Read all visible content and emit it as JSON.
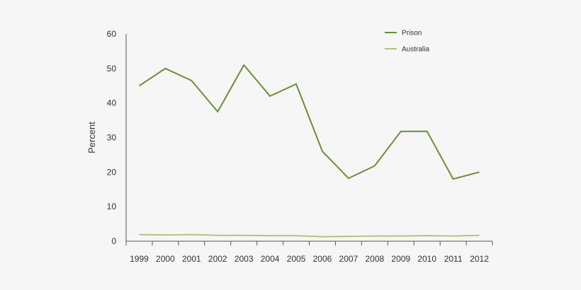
{
  "chart_data": {
    "type": "line",
    "title": "",
    "xlabel": "",
    "ylabel": "Percent",
    "x": [
      "1999",
      "2000",
      "2001",
      "2002",
      "2003",
      "2004",
      "2005",
      "2006",
      "2007",
      "2008",
      "2009",
      "2010",
      "2011",
      "2012"
    ],
    "ylim": [
      0,
      60
    ],
    "yticks": [
      "0",
      "10",
      "20",
      "30",
      "40",
      "50",
      "60"
    ],
    "grid": false,
    "legend_position": "top-right",
    "series": [
      {
        "name": "Prison",
        "color": "#6b8e3a",
        "values": [
          45,
          50,
          46.5,
          37.5,
          51,
          42,
          45.5,
          26,
          18.2,
          21.8,
          31.8,
          31.8,
          18,
          20
        ]
      },
      {
        "name": "Australia",
        "color": "#a9c57a",
        "values": [
          1.9,
          1.8,
          1.9,
          1.7,
          1.7,
          1.6,
          1.6,
          1.3,
          1.4,
          1.5,
          1.5,
          1.6,
          1.5,
          1.7
        ]
      }
    ]
  }
}
